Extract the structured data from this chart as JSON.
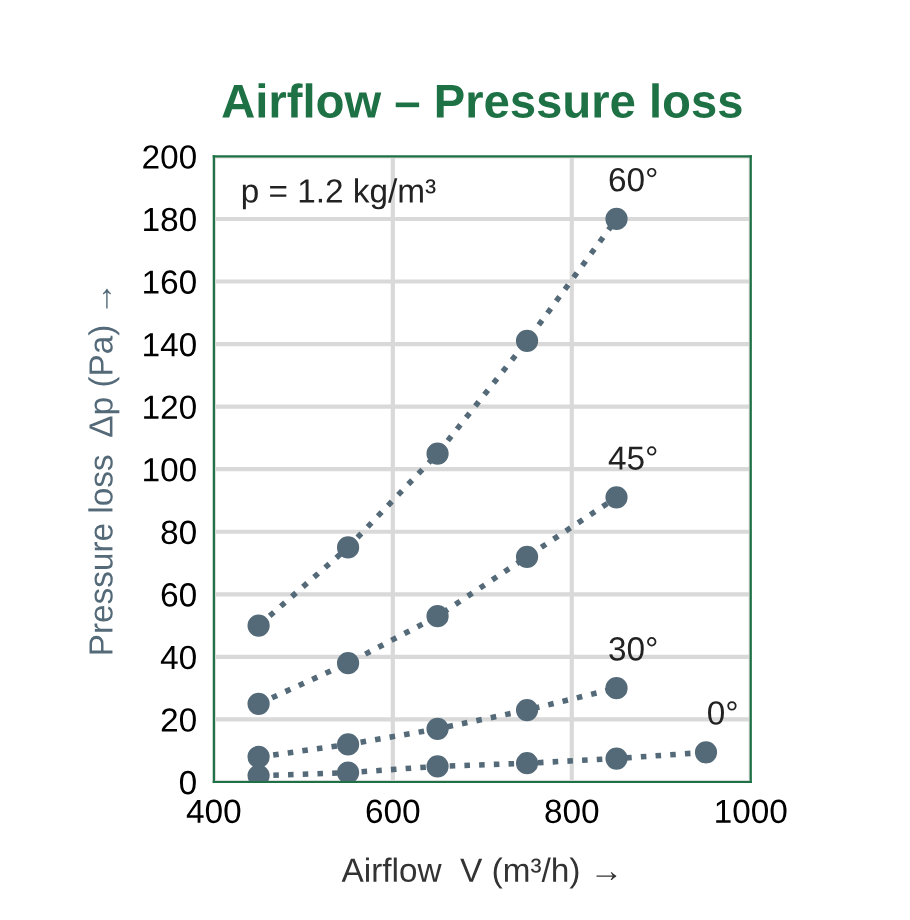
{
  "chart_data": {
    "type": "line",
    "title": "Airflow – Pressure loss",
    "xlabel": "Airflow  V (m³/h) →",
    "ylabel": "Pressure loss  Δp (Pa) →",
    "annotations": [
      "p = 1.2 kg/m³"
    ],
    "series": [
      {
        "name": "60°",
        "color": "#546a78",
        "x": [
          450,
          550,
          650,
          750,
          850
        ],
        "values": [
          50,
          75,
          105,
          141,
          180
        ]
      },
      {
        "name": "45°",
        "color": "#546a78",
        "x": [
          450,
          550,
          650,
          750,
          850
        ],
        "values": [
          25,
          38,
          53,
          72,
          91
        ]
      },
      {
        "name": "30°",
        "color": "#546a78",
        "x": [
          450,
          550,
          650,
          750,
          850
        ],
        "values": [
          8,
          12,
          17,
          23,
          30
        ]
      },
      {
        "name": "0°",
        "color": "#546a78",
        "x": [
          450,
          550,
          650,
          750,
          850,
          950
        ],
        "values": [
          2,
          3,
          5,
          6,
          7.5,
          9.5
        ]
      }
    ],
    "xlim": [
      400,
      1000
    ],
    "xticks": [
      400,
      600,
      800,
      1000
    ],
    "ylim": [
      0,
      200
    ],
    "yticks": [
      0,
      20,
      40,
      60,
      80,
      100,
      120,
      140,
      160,
      180,
      200
    ],
    "grid": true,
    "marker": "circle",
    "line_style": "dotted"
  }
}
